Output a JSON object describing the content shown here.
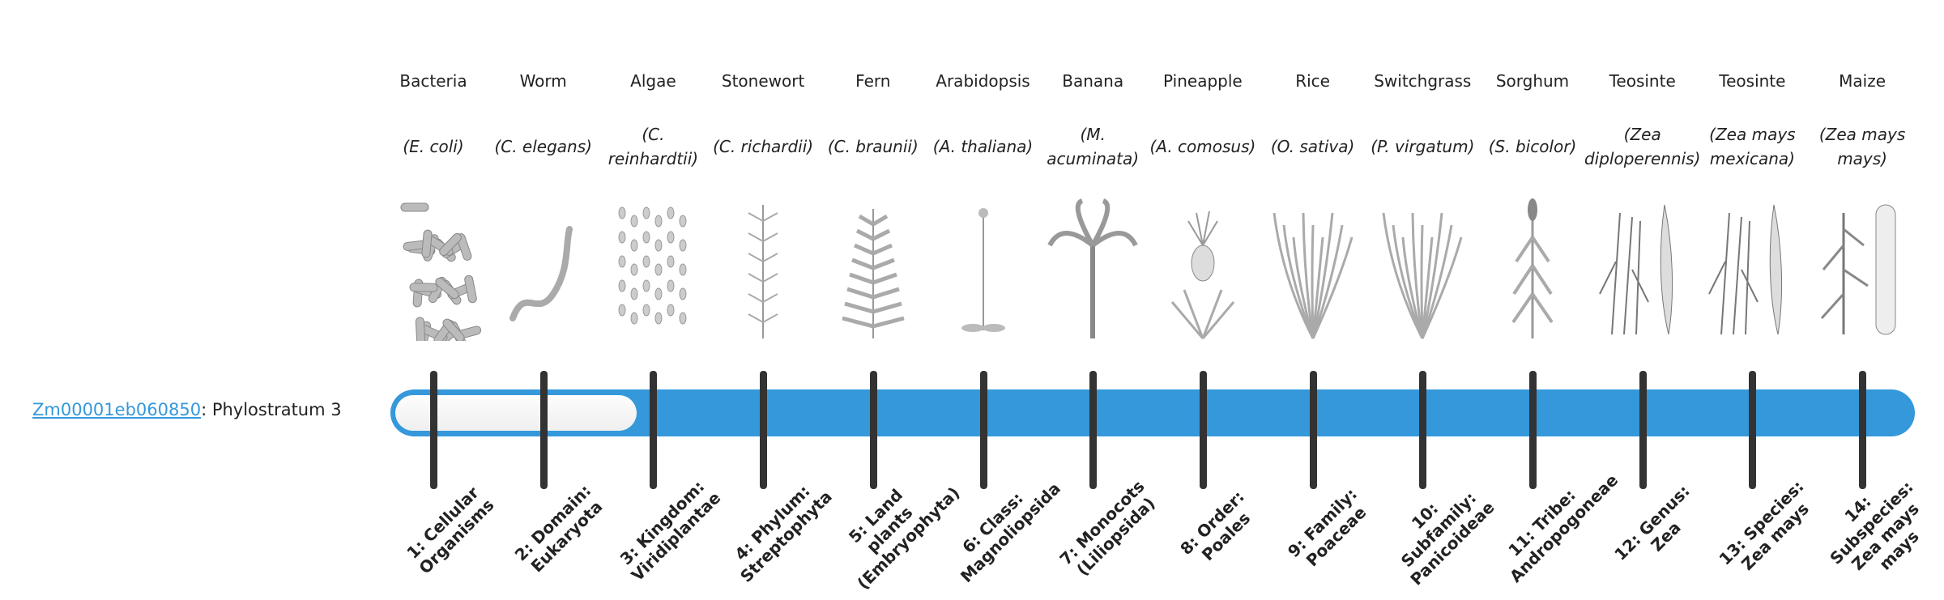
{
  "gene": {
    "id": "Zm00001eb060850",
    "suffix": ": Phylostratum 3"
  },
  "phylostratum": 3,
  "colors": {
    "bar": "#3498db",
    "tick": "#333333",
    "link": "#3498db"
  },
  "strata": [
    {
      "name": "Bacteria",
      "sci": "(E. coli)",
      "label": "1: Cellular Organisms",
      "icon": "bacteria-icon"
    },
    {
      "name": "Worm",
      "sci": "(C. elegans)",
      "label": "2: Domain: Eukaryota",
      "icon": "worm-icon"
    },
    {
      "name": "Algae",
      "sci": "(C. reinhardtii)",
      "label": "3: Kingdom: Viridiplantae",
      "icon": "algae-icon"
    },
    {
      "name": "Stonewort",
      "sci": "(C. richardii)",
      "label": "4: Phylum: Streptophyta",
      "icon": "stonewort-icon"
    },
    {
      "name": "Fern",
      "sci": "(C. braunii)",
      "label": "5: Land plants (Embryophyta)",
      "icon": "fern-icon"
    },
    {
      "name": "Arabidopsis",
      "sci": "(A. thaliana)",
      "label": "6: Class: Magnoliopsida",
      "icon": "arabidopsis-icon"
    },
    {
      "name": "Banana",
      "sci": "(M. acuminata)",
      "label": "7: Monocots (Liliopsida)",
      "icon": "banana-icon"
    },
    {
      "name": "Pineapple",
      "sci": "(A. comosus)",
      "label": "8: Order: Poales",
      "icon": "pineapple-icon"
    },
    {
      "name": "Rice",
      "sci": "(O. sativa)",
      "label": "9: Family: Poaceae",
      "icon": "rice-icon"
    },
    {
      "name": "Switchgrass",
      "sci": "(P. virgatum)",
      "label": "10: Subfamily: Panicoideae",
      "icon": "switchgrass-icon"
    },
    {
      "name": "Sorghum",
      "sci": "(S. bicolor)",
      "label": "11: Tribe: Andropogoneae",
      "icon": "sorghum-icon"
    },
    {
      "name": "Teosinte",
      "sci": "(Zea diploperennis)",
      "label": "12: Genus: Zea",
      "icon": "teosinte-icon"
    },
    {
      "name": "Teosinte",
      "sci": "(Zea mays mexicana)",
      "label": "13: Species: Zea mays",
      "icon": "teosinte-icon"
    },
    {
      "name": "Maize",
      "sci": "(Zea mays mays)",
      "label": "14: Subspecies: Zea mays mays",
      "icon": "maize-icon"
    }
  ]
}
